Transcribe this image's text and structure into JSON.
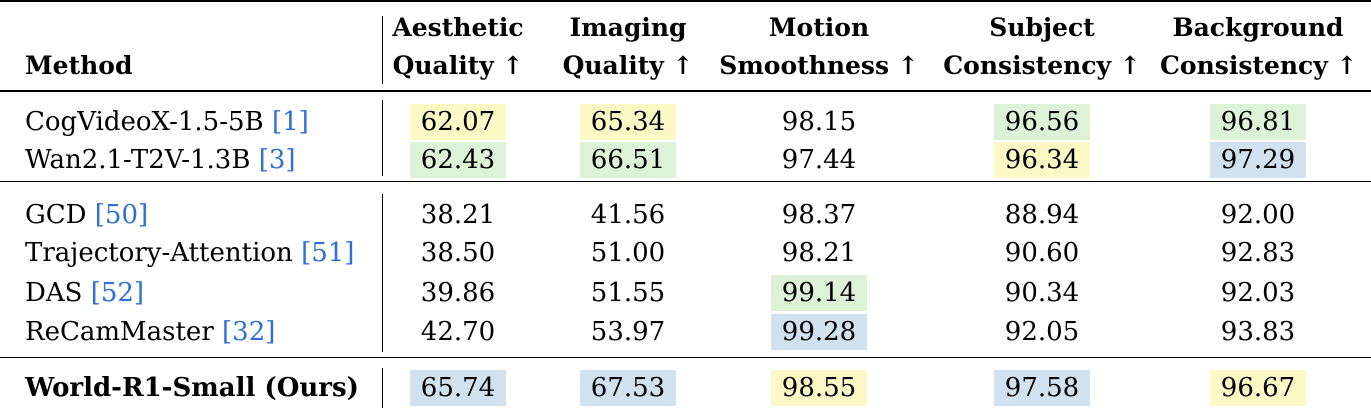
{
  "colors": {
    "highlight_yellow": "#fdf9c7",
    "highlight_green": "#def2d7",
    "highlight_blue": "#d2e1ef",
    "reference_link": "#2f6fd6"
  },
  "header": {
    "method": "Method",
    "columns": [
      {
        "line1": "Aesthetic",
        "line2": "Quality ↑"
      },
      {
        "line1": "Imaging",
        "line2": "Quality ↑"
      },
      {
        "line1": "Motion",
        "line2": "Smoothness ↑"
      },
      {
        "line1": "Subject",
        "line2": "Consistency ↑"
      },
      {
        "line1": "Background",
        "line2": "Consistency ↑"
      }
    ]
  },
  "rows": [
    {
      "name": "CogVideoX-1.5-5B ",
      "ref": "[1]",
      "bold": false,
      "values": [
        "62.07",
        "65.34",
        "98.15",
        "96.56",
        "96.81"
      ],
      "highlights": [
        "yellow",
        "yellow",
        "",
        "green",
        "green"
      ]
    },
    {
      "name": "Wan2.1-T2V-1.3B ",
      "ref": "[3]",
      "bold": false,
      "values": [
        "62.43",
        "66.51",
        "97.44",
        "96.34",
        "97.29"
      ],
      "highlights": [
        "green",
        "green",
        "",
        "yellow",
        "blue"
      ]
    },
    {
      "name": "GCD ",
      "ref": "[50]",
      "bold": false,
      "values": [
        "38.21",
        "41.56",
        "98.37",
        "88.94",
        "92.00"
      ],
      "highlights": [
        "",
        "",
        "",
        "",
        ""
      ]
    },
    {
      "name": "Trajectory-Attention ",
      "ref": "[51]",
      "bold": false,
      "values": [
        "38.50",
        "51.00",
        "98.21",
        "90.60",
        "92.83"
      ],
      "highlights": [
        "",
        "",
        "",
        "",
        ""
      ]
    },
    {
      "name": "DAS ",
      "ref": "[52]",
      "bold": false,
      "values": [
        "39.86",
        "51.55",
        "99.14",
        "90.34",
        "92.03"
      ],
      "highlights": [
        "",
        "",
        "green",
        "",
        ""
      ]
    },
    {
      "name": "ReCamMaster ",
      "ref": "[32]",
      "bold": false,
      "values": [
        "42.70",
        "53.97",
        "99.28",
        "92.05",
        "93.83"
      ],
      "highlights": [
        "",
        "",
        "blue",
        "",
        ""
      ]
    },
    {
      "name": "World-R1-Small (Ours)",
      "ref": "",
      "bold": true,
      "values": [
        "65.74",
        "67.53",
        "98.55",
        "97.58",
        "96.67"
      ],
      "highlights": [
        "blue",
        "blue",
        "yellow",
        "blue",
        "yellow"
      ]
    }
  ]
}
